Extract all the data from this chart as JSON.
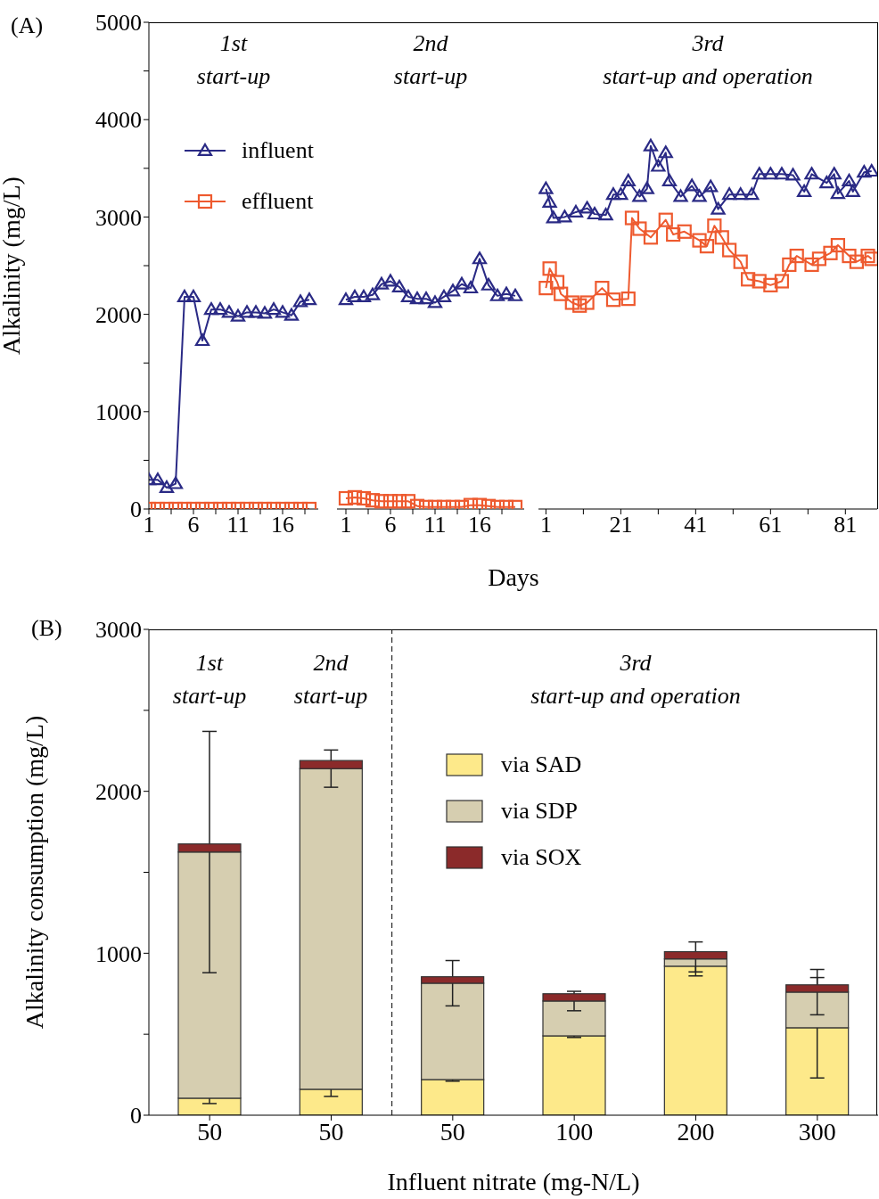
{
  "chart_data": [
    {
      "type": "line",
      "title": "(A)",
      "annotations": [
        "1st start-up"
      ],
      "ylabel": "Alkalinity (mg/L)",
      "xlim": [
        1,
        20
      ],
      "xticks": [
        1,
        {
          "value": 3.5,
          "label": null
        },
        6,
        {
          "value": 8.5,
          "label": null
        },
        11,
        {
          "value": 13.5,
          "label": null
        },
        16,
        {
          "value": 18.5,
          "label": null
        }
      ],
      "ylim": [
        0,
        5000
      ],
      "yticks": [
        0,
        {
          "value": 500,
          "label": null
        },
        1000,
        {
          "value": 1500,
          "label": null
        },
        2000,
        {
          "value": 2500,
          "label": null
        },
        3000,
        {
          "value": 3500,
          "label": null
        },
        4000,
        {
          "value": 4500,
          "label": null
        },
        5000
      ],
      "legend": "top right",
      "series": [
        {
          "name": "influent",
          "color": "#2a2a85",
          "marker": "triangle",
          "x": [
            1,
            2,
            3,
            4,
            5,
            6,
            7,
            8,
            9,
            10,
            11,
            12,
            13,
            14,
            15,
            16,
            17,
            18,
            19
          ],
          "values": [
            300,
            300,
            220,
            260,
            2180,
            2180,
            1730,
            2050,
            2050,
            2020,
            1980,
            2020,
            2020,
            2010,
            2050,
            2020,
            1990,
            2130,
            2150
          ]
        },
        {
          "name": "effluent",
          "color": "#ee5a2f",
          "marker": "square",
          "x": [
            1,
            2,
            3,
            4,
            5,
            6,
            7,
            8,
            9,
            10,
            11,
            12,
            13,
            14,
            15,
            16,
            17,
            18,
            19
          ],
          "values": [
            0,
            0,
            0,
            0,
            0,
            0,
            0,
            0,
            0,
            0,
            0,
            0,
            0,
            0,
            0,
            0,
            0,
            0,
            0
          ]
        }
      ]
    },
    {
      "type": "line",
      "annotations": [
        "2nd start-up"
      ],
      "xlabel": "Days",
      "xlim": [
        0,
        21
      ],
      "xticks": [
        1,
        {
          "value": 3.5,
          "label": null
        },
        6,
        {
          "value": 8.5,
          "label": null
        },
        11,
        {
          "value": 13.5,
          "label": null
        },
        16,
        {
          "value": 18.5,
          "label": null
        }
      ],
      "ylim": [
        0,
        5000
      ],
      "tick_labels": "x",
      "series": [
        {
          "color": "#2a2a85",
          "marker": "triangle",
          "x": [
            1,
            2,
            3,
            4,
            5,
            6,
            7,
            8,
            9,
            10,
            11,
            12,
            13,
            14,
            15,
            16,
            17,
            18,
            19,
            20
          ],
          "values": [
            2150,
            2180,
            2180,
            2200,
            2310,
            2340,
            2280,
            2180,
            2160,
            2160,
            2120,
            2180,
            2240,
            2310,
            2270,
            2570,
            2300,
            2190,
            2210,
            2190
          ]
        },
        {
          "color": "#ee5a2f",
          "marker": "square",
          "x": [
            1,
            2,
            3,
            4,
            5,
            6,
            7,
            8,
            9,
            10,
            11,
            12,
            13,
            14,
            15,
            16,
            17,
            18,
            19,
            20
          ],
          "values": [
            110,
            120,
            110,
            90,
            80,
            80,
            80,
            80,
            30,
            20,
            20,
            20,
            20,
            20,
            40,
            40,
            30,
            20,
            20,
            20
          ]
        }
      ]
    },
    {
      "type": "line",
      "annotations": [
        "3rd start-up and operation"
      ],
      "xlim": [
        -1,
        89.5
      ],
      "xticks": [
        1,
        {
          "value": 11,
          "label": null
        },
        21,
        {
          "value": 31,
          "label": null
        },
        41,
        {
          "value": 51,
          "label": null
        },
        61,
        {
          "value": 71,
          "label": null
        },
        81
      ],
      "ylim": [
        0,
        5000
      ],
      "tick_labels": "x",
      "series": [
        {
          "color": "#2a2a85",
          "marker": "triangle",
          "x": [
            1,
            2,
            3,
            6,
            9,
            12,
            14,
            17,
            19,
            21,
            23,
            26,
            28,
            29,
            31,
            33,
            34,
            37,
            40,
            42,
            45,
            47,
            50,
            53,
            56,
            58,
            61,
            64,
            67,
            70,
            72,
            76,
            78,
            79,
            82,
            83,
            86,
            88
          ],
          "values": [
            3290,
            3150,
            2990,
            3000,
            3050,
            3090,
            3030,
            3020,
            3230,
            3230,
            3370,
            3210,
            3290,
            3730,
            3520,
            3660,
            3370,
            3210,
            3320,
            3210,
            3310,
            3080,
            3230,
            3230,
            3230,
            3440,
            3440,
            3440,
            3430,
            3260,
            3440,
            3350,
            3440,
            3240,
            3370,
            3260,
            3460,
            3470
          ]
        },
        {
          "color": "#ee5a2f",
          "marker": "square",
          "x": [
            1,
            2,
            4,
            5,
            8,
            10,
            12,
            16,
            19,
            23,
            24,
            26,
            29,
            33,
            35,
            38,
            42,
            44,
            46,
            48,
            50,
            53,
            55,
            58,
            61,
            64,
            66,
            68,
            72,
            74,
            77,
            79,
            82,
            84,
            87,
            88
          ],
          "values": [
            2270,
            2470,
            2330,
            2210,
            2120,
            2090,
            2120,
            2270,
            2150,
            2160,
            2990,
            2880,
            2790,
            2970,
            2820,
            2850,
            2760,
            2700,
            2910,
            2790,
            2660,
            2540,
            2360,
            2340,
            2300,
            2340,
            2510,
            2600,
            2510,
            2570,
            2630,
            2710,
            2600,
            2540,
            2600,
            2570
          ]
        }
      ]
    },
    {
      "type": "bar",
      "stacked": true,
      "title": "(B)",
      "annotations": [
        "1st start-up",
        "2nd start-up",
        "3rd start-up and operation"
      ],
      "xlabel": "Influent nitrate (mg-N/L)",
      "ylabel": "Alkalinity consumption (mg/L)",
      "categories": [
        "50",
        "50",
        "50",
        "100",
        "200",
        "300"
      ],
      "ylim": [
        0,
        3000
      ],
      "yticks": [
        0,
        {
          "value": 500,
          "label": null
        },
        1000,
        {
          "value": 1500,
          "label": null
        },
        2000,
        {
          "value": 2500,
          "label": null
        },
        3000
      ],
      "legend": "top",
      "series": [
        {
          "name": "via SAD",
          "color": "#fde98a",
          "values": [
            105,
            160,
            220,
            490,
            920,
            540
          ],
          "errors": [
            33,
            44,
            10,
            10,
            35,
            310
          ]
        },
        {
          "name": "via SDP",
          "color": "#d6ceb0",
          "values": [
            1520,
            1980,
            595,
            215,
            45,
            220
          ],
          "errors": [
            745,
            115,
            140,
            60,
            105,
            140
          ]
        },
        {
          "name": "via SOX",
          "color": "#8b2a2a",
          "values": [
            50,
            50,
            40,
            45,
            45,
            45
          ]
        }
      ]
    }
  ]
}
